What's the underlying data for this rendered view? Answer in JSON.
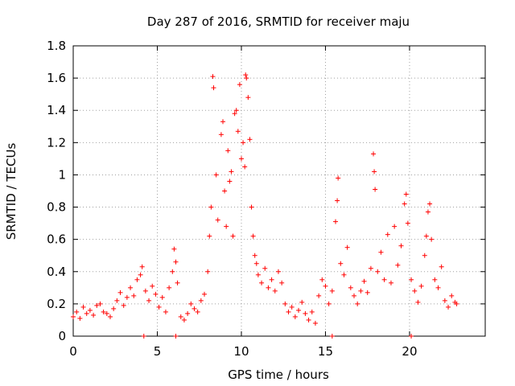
{
  "chart_data": {
    "type": "scatter",
    "title": "Day 287 of 2016, SRMTID for receiver maju",
    "xlabel": "GPS time / hours",
    "ylabel": "SRMTID / TECUs",
    "xlim": [
      0,
      24.5
    ],
    "ylim": [
      0,
      1.8
    ],
    "xticks": [
      0,
      5,
      10,
      15,
      20
    ],
    "xtick_labels": [
      "0",
      "5",
      "10",
      "15",
      "20"
    ],
    "yticks": [
      0,
      0.2,
      0.4,
      0.6,
      0.8,
      1.0,
      1.2,
      1.4,
      1.6,
      1.8
    ],
    "ytick_labels": [
      "0",
      "0.2",
      "0.4",
      "0.6",
      "0.8",
      "1",
      "1.2",
      "1.4",
      "1.6",
      "1.8"
    ],
    "grid": true,
    "marker": "+",
    "color": "#ff0000",
    "series": [
      {
        "name": "SRMTID",
        "points": [
          [
            0.0,
            0.12
          ],
          [
            0.2,
            0.15
          ],
          [
            0.4,
            0.11
          ],
          [
            0.6,
            0.18
          ],
          [
            0.8,
            0.14
          ],
          [
            1.0,
            0.16
          ],
          [
            1.2,
            0.13
          ],
          [
            1.4,
            0.19
          ],
          [
            1.6,
            0.2
          ],
          [
            1.8,
            0.15
          ],
          [
            2.0,
            0.14
          ],
          [
            2.2,
            0.12
          ],
          [
            2.4,
            0.17
          ],
          [
            2.6,
            0.22
          ],
          [
            2.8,
            0.27
          ],
          [
            3.0,
            0.19
          ],
          [
            3.2,
            0.24
          ],
          [
            3.4,
            0.3
          ],
          [
            3.6,
            0.25
          ],
          [
            3.8,
            0.35
          ],
          [
            4.0,
            0.38
          ],
          [
            4.1,
            0.43
          ],
          [
            4.3,
            0.28
          ],
          [
            4.5,
            0.22
          ],
          [
            4.7,
            0.31
          ],
          [
            4.9,
            0.26
          ],
          [
            5.1,
            0.18
          ],
          [
            5.3,
            0.24
          ],
          [
            5.5,
            0.15
          ],
          [
            5.7,
            0.3
          ],
          [
            5.9,
            0.4
          ],
          [
            6.0,
            0.54
          ],
          [
            6.1,
            0.46
          ],
          [
            6.2,
            0.33
          ],
          [
            6.4,
            0.12
          ],
          [
            6.6,
            0.1
          ],
          [
            6.8,
            0.14
          ],
          [
            7.0,
            0.2
          ],
          [
            7.2,
            0.17
          ],
          [
            7.4,
            0.15
          ],
          [
            7.6,
            0.22
          ],
          [
            7.8,
            0.26
          ],
          [
            8.0,
            0.4
          ],
          [
            8.1,
            0.62
          ],
          [
            8.2,
            0.8
          ],
          [
            8.3,
            1.61
          ],
          [
            8.35,
            1.54
          ],
          [
            8.5,
            1.0
          ],
          [
            8.6,
            0.72
          ],
          [
            8.8,
            1.25
          ],
          [
            8.9,
            1.33
          ],
          [
            9.0,
            0.9
          ],
          [
            9.1,
            0.68
          ],
          [
            9.2,
            1.15
          ],
          [
            9.3,
            0.96
          ],
          [
            9.4,
            1.02
          ],
          [
            9.5,
            0.62
          ],
          [
            9.6,
            1.38
          ],
          [
            9.7,
            1.4
          ],
          [
            9.8,
            1.27
          ],
          [
            9.9,
            1.56
          ],
          [
            10.0,
            1.1
          ],
          [
            10.1,
            1.2
          ],
          [
            10.2,
            1.05
          ],
          [
            10.25,
            1.62
          ],
          [
            10.3,
            1.6
          ],
          [
            10.4,
            1.48
          ],
          [
            10.5,
            1.22
          ],
          [
            10.6,
            0.8
          ],
          [
            10.7,
            0.62
          ],
          [
            10.8,
            0.5
          ],
          [
            10.9,
            0.45
          ],
          [
            11.0,
            0.38
          ],
          [
            11.2,
            0.33
          ],
          [
            11.4,
            0.42
          ],
          [
            11.6,
            0.3
          ],
          [
            11.8,
            0.35
          ],
          [
            12.0,
            0.28
          ],
          [
            12.2,
            0.4
          ],
          [
            12.4,
            0.33
          ],
          [
            12.6,
            0.2
          ],
          [
            12.8,
            0.15
          ],
          [
            13.0,
            0.18
          ],
          [
            13.2,
            0.12
          ],
          [
            13.4,
            0.16
          ],
          [
            13.6,
            0.21
          ],
          [
            13.8,
            0.14
          ],
          [
            14.0,
            0.1
          ],
          [
            14.2,
            0.15
          ],
          [
            14.4,
            0.08
          ],
          [
            14.6,
            0.25
          ],
          [
            14.8,
            0.35
          ],
          [
            15.0,
            0.31
          ],
          [
            15.2,
            0.2
          ],
          [
            15.4,
            0.28
          ],
          [
            15.6,
            0.71
          ],
          [
            15.7,
            0.84
          ],
          [
            15.75,
            0.98
          ],
          [
            15.9,
            0.45
          ],
          [
            16.1,
            0.38
          ],
          [
            16.3,
            0.55
          ],
          [
            16.5,
            0.3
          ],
          [
            16.7,
            0.25
          ],
          [
            16.9,
            0.2
          ],
          [
            17.1,
            0.28
          ],
          [
            17.3,
            0.34
          ],
          [
            17.5,
            0.27
          ],
          [
            17.7,
            0.42
          ],
          [
            17.85,
            1.13
          ],
          [
            17.9,
            1.02
          ],
          [
            17.95,
            0.91
          ],
          [
            18.1,
            0.4
          ],
          [
            18.3,
            0.52
          ],
          [
            18.5,
            0.35
          ],
          [
            18.7,
            0.63
          ],
          [
            18.9,
            0.33
          ],
          [
            19.1,
            0.68
          ],
          [
            19.3,
            0.44
          ],
          [
            19.5,
            0.56
          ],
          [
            19.7,
            0.82
          ],
          [
            19.8,
            0.88
          ],
          [
            19.9,
            0.7
          ],
          [
            20.1,
            0.35
          ],
          [
            20.3,
            0.28
          ],
          [
            20.5,
            0.21
          ],
          [
            20.7,
            0.31
          ],
          [
            20.9,
            0.5
          ],
          [
            21.0,
            0.62
          ],
          [
            21.1,
            0.77
          ],
          [
            21.2,
            0.82
          ],
          [
            21.3,
            0.6
          ],
          [
            21.5,
            0.35
          ],
          [
            21.7,
            0.3
          ],
          [
            21.9,
            0.43
          ],
          [
            22.1,
            0.22
          ],
          [
            22.3,
            0.18
          ],
          [
            22.5,
            0.25
          ],
          [
            22.7,
            0.21
          ],
          [
            22.8,
            0.2
          ]
        ]
      }
    ],
    "zero_markers_x": [
      4.2,
      6.1,
      15.4,
      20.1
    ]
  }
}
